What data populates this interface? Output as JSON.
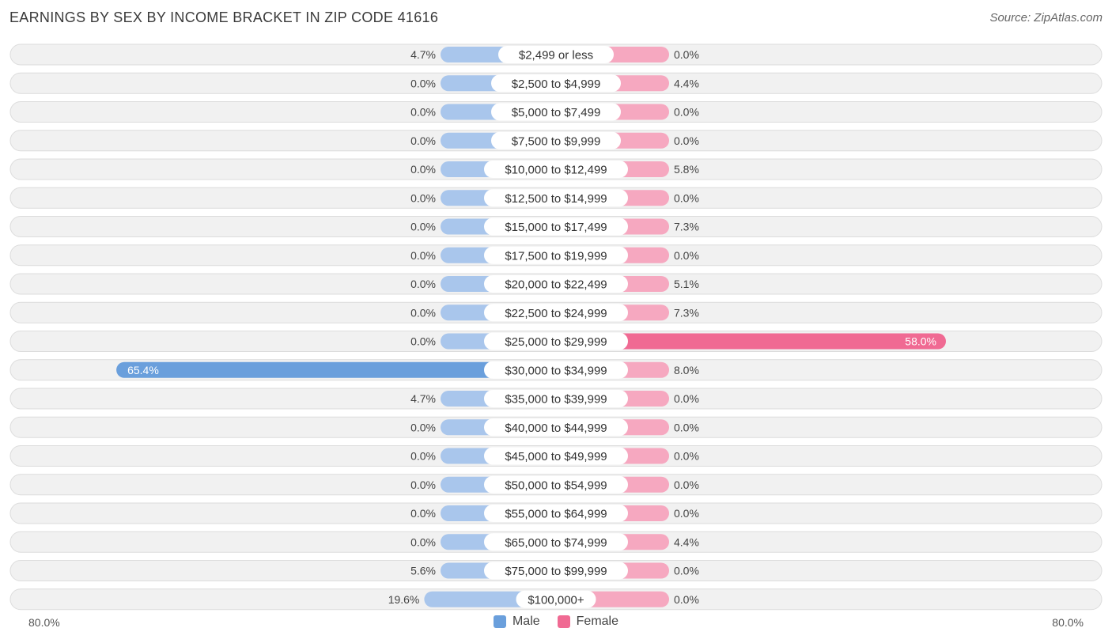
{
  "title": "EARNINGS BY SEX BY INCOME BRACKET IN ZIP CODE 41616",
  "source": "Source: ZipAtlas.com",
  "axis": {
    "left_label": "80.0%",
    "right_label": "80.0%"
  },
  "legend": [
    {
      "label": "Male",
      "color": "#6a9fdc"
    },
    {
      "label": "Female",
      "color": "#f06a93"
    }
  ],
  "colors": {
    "male_light": "#a9c6ec",
    "male_dark": "#6a9fdc",
    "female_light": "#f6a8c0",
    "female_dark": "#f06a93",
    "row_bg": "#f1f1f1",
    "row_border": "#dcdcdc"
  },
  "chart_data": {
    "type": "bar",
    "orientation": "horizontal-diverging",
    "title": "EARNINGS BY SEX BY INCOME BRACKET IN ZIP CODE 41616",
    "xlim": [
      -80,
      80
    ],
    "categories": [
      "$2,499 or less",
      "$2,500 to $4,999",
      "$5,000 to $7,499",
      "$7,500 to $9,999",
      "$10,000 to $12,499",
      "$12,500 to $14,999",
      "$15,000 to $17,499",
      "$17,500 to $19,999",
      "$20,000 to $22,499",
      "$22,500 to $24,999",
      "$25,000 to $29,999",
      "$30,000 to $34,999",
      "$35,000 to $39,999",
      "$40,000 to $44,999",
      "$45,000 to $49,999",
      "$50,000 to $54,999",
      "$55,000 to $64,999",
      "$65,000 to $74,999",
      "$75,000 to $99,999",
      "$100,000+"
    ],
    "series": [
      {
        "name": "Male",
        "values": [
          4.7,
          0.0,
          0.0,
          0.0,
          0.0,
          0.0,
          0.0,
          0.0,
          0.0,
          0.0,
          0.0,
          65.4,
          4.7,
          0.0,
          0.0,
          0.0,
          0.0,
          0.0,
          5.6,
          19.6
        ],
        "labels": [
          "4.7%",
          "0.0%",
          "0.0%",
          "0.0%",
          "0.0%",
          "0.0%",
          "0.0%",
          "0.0%",
          "0.0%",
          "0.0%",
          "0.0%",
          "65.4%",
          "4.7%",
          "0.0%",
          "0.0%",
          "0.0%",
          "0.0%",
          "0.0%",
          "5.6%",
          "19.6%"
        ]
      },
      {
        "name": "Female",
        "values": [
          0.0,
          4.4,
          0.0,
          0.0,
          5.8,
          0.0,
          7.3,
          0.0,
          5.1,
          7.3,
          58.0,
          8.0,
          0.0,
          0.0,
          0.0,
          0.0,
          0.0,
          4.4,
          0.0,
          0.0
        ],
        "labels": [
          "0.0%",
          "4.4%",
          "0.0%",
          "0.0%",
          "5.8%",
          "0.0%",
          "7.3%",
          "0.0%",
          "5.1%",
          "7.3%",
          "58.0%",
          "8.0%",
          "0.0%",
          "0.0%",
          "0.0%",
          "0.0%",
          "0.0%",
          "4.4%",
          "0.0%",
          "0.0%"
        ]
      }
    ]
  }
}
